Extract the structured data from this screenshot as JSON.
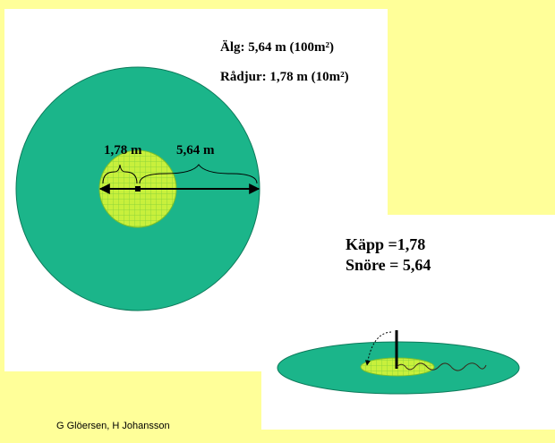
{
  "labels": {
    "alg": "Älg: 5,64 m (100m²)",
    "radjur": "Rådjur: 1,78 m (10m²)",
    "small_radius": "1,78 m",
    "large_radius": "5,64 m",
    "kapp": "Käpp =1,78",
    "snore": "Snöre = 5,64",
    "credit": "G Glöersen, H Johansson"
  },
  "colors": {
    "background": "#ffff99",
    "panel": "#ffffff",
    "large_circle": "#1bb58a",
    "small_circle": "#c8f03c",
    "grid": "#8fd63a"
  }
}
